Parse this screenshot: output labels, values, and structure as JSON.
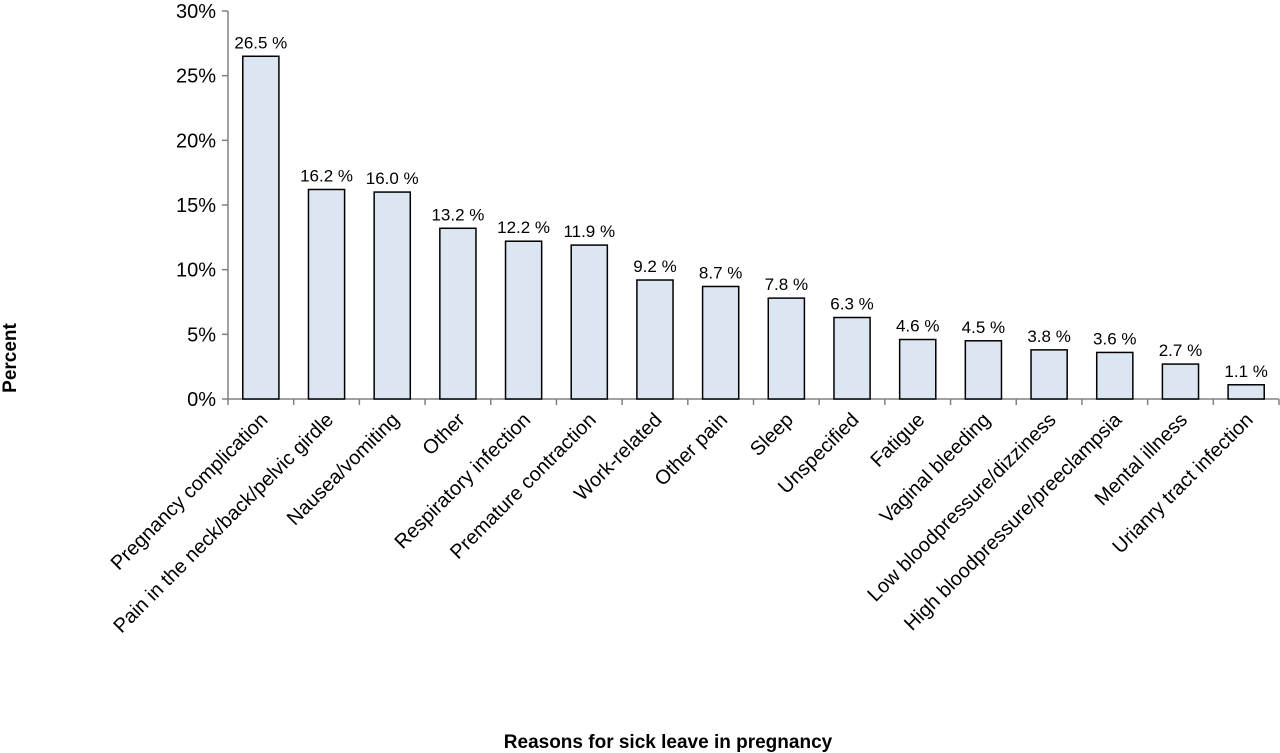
{
  "chart_data": {
    "type": "bar",
    "title": "",
    "xlabel": "Reasons for sick leave in pregnancy",
    "ylabel": "Percent",
    "ylim": [
      0,
      30
    ],
    "yticks": [
      0,
      5,
      10,
      15,
      20,
      25,
      30
    ],
    "ytick_labels": [
      "0%",
      "5%",
      "10%",
      "15%",
      "20%",
      "25%",
      "30%"
    ],
    "grid": false,
    "legend": "none",
    "bar_color": "#dce6f2",
    "bar_edge_color": "#000000",
    "categories": [
      "Pregnancy complication",
      "Pain in the neck/back/pelvic girdle",
      "Nausea/vomiting",
      "Other",
      "Respiratory infection",
      "Premature contraction",
      "Work-related",
      "Other pain",
      "Sleep",
      "Unspecified",
      "Fatigue",
      "Vaginal bleeding",
      "Low bloodpressure/dizziness",
      "High bloodpressure/preeclampsia",
      "Mental illness",
      "Urianry tract infection"
    ],
    "values": [
      26.5,
      16.2,
      16.0,
      13.2,
      12.2,
      11.9,
      9.2,
      8.7,
      7.8,
      6.3,
      4.6,
      4.5,
      3.8,
      3.6,
      2.7,
      1.1
    ],
    "data_labels": [
      "26.5 %",
      "16.2 %",
      "16.0 %",
      "13.2 %",
      "12.2 %",
      "11.9 %",
      "9.2 %",
      "8.7 %",
      "7.8 %",
      "6.3 %",
      "4.6 %",
      "4.5 %",
      "3.8 %",
      "3.6 %",
      "2.7 %",
      "1.1 %"
    ]
  }
}
